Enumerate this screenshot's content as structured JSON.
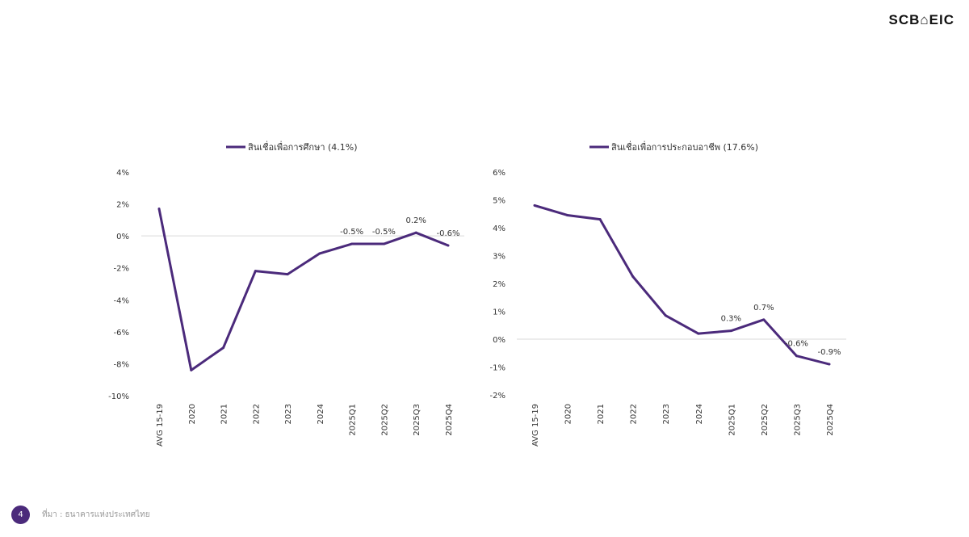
{
  "logo": "SCB⌂EIC",
  "footer": {
    "page": "4",
    "source": "ที่มา : ธนาคารแห่งประเทศไทย"
  },
  "colors": {
    "line": "#4b2a7b",
    "zero": "#d9d9d9"
  },
  "chart_data": [
    {
      "type": "line",
      "legend_position": "top",
      "categories": [
        "AVG 15-19",
        "2020",
        "2021",
        "2022",
        "2023",
        "2024",
        "2025Q1",
        "2025Q2",
        "2025Q3",
        "2025Q4"
      ],
      "series": [
        {
          "name": "สินเชื่อเพื่อการศึกษา (4.1%)",
          "values": [
            1.7,
            -8.4,
            -7.0,
            -2.2,
            -2.4,
            -1.1,
            -0.5,
            -0.5,
            0.2,
            -0.6
          ]
        }
      ],
      "data_labels": [
        null,
        null,
        null,
        null,
        null,
        null,
        "-0.5%",
        "-0.5%",
        "0.2%",
        "-0.6%"
      ],
      "yticks": [
        "4%",
        "2%",
        "0%",
        "-2%",
        "-4%",
        "-6%",
        "-8%",
        "-10%"
      ],
      "ylim": [
        -10,
        4
      ],
      "grid": false
    },
    {
      "type": "line",
      "legend_position": "top",
      "categories": [
        "AVG 15-19",
        "2020",
        "2021",
        "2022",
        "2023",
        "2024",
        "2025Q1",
        "2025Q2",
        "2025Q3",
        "2025Q4"
      ],
      "series": [
        {
          "name": "สินเชื่อเพื่อการประกอบอาชีพ (17.6%)",
          "values": [
            4.8,
            4.45,
            4.3,
            2.25,
            0.85,
            0.2,
            0.3,
            0.7,
            -0.6,
            -0.9
          ]
        }
      ],
      "data_labels": [
        null,
        null,
        null,
        null,
        null,
        null,
        "0.3%",
        "0.7%",
        "-0.6%",
        "-0.9%"
      ],
      "yticks": [
        "6%",
        "5%",
        "4%",
        "3%",
        "2%",
        "1%",
        "0%",
        "-1%",
        "-2%"
      ],
      "ylim": [
        -2,
        6
      ],
      "grid": false
    }
  ]
}
